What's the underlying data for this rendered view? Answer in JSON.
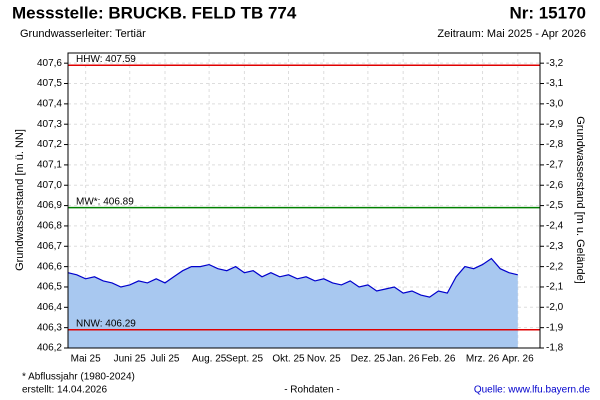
{
  "chart_data": {
    "type": "area",
    "title": "Messstelle: BRUCKB. FELD TB 774",
    "number": "Nr: 15170",
    "subtitle": "Grundwasserleiter: Tertiär",
    "period": "Zeitraum: Mai 2025 - Apr 2026",
    "ylabel": "Grundwasserstand [m ü. NN]",
    "y2label": "Grundwasserstand [m u. Gelände]",
    "footnote": "* Abflussjahr (1980-2024)",
    "created": "erstellt:  14.04.2026",
    "note": "- Rohdaten -",
    "source": "Quelle: www.lfu.bayern.de",
    "categories": [
      null,
      null,
      "Mai 25",
      null,
      null,
      null,
      null,
      "Juni 25",
      null,
      null,
      null,
      "Juli 25",
      null,
      null,
      null,
      null,
      "Aug. 25",
      null,
      null,
      null,
      "Sept. 25",
      null,
      null,
      null,
      null,
      "Okt. 25",
      null,
      null,
      null,
      "Nov. 25",
      null,
      null,
      null,
      null,
      "Dez. 25",
      null,
      null,
      null,
      "Jan. 26",
      null,
      null,
      null,
      "Feb. 26",
      null,
      null,
      null,
      null,
      "Mrz. 26",
      null,
      null,
      null,
      "Apr. 26"
    ],
    "values": [
      406.57,
      406.56,
      406.54,
      406.55,
      406.53,
      406.52,
      406.5,
      406.51,
      406.53,
      406.52,
      406.54,
      406.52,
      406.55,
      406.58,
      406.6,
      406.6,
      406.61,
      406.59,
      406.58,
      406.6,
      406.57,
      406.58,
      406.55,
      406.57,
      406.55,
      406.56,
      406.54,
      406.55,
      406.53,
      406.54,
      406.52,
      406.51,
      406.53,
      406.5,
      406.51,
      406.48,
      406.49,
      406.5,
      406.47,
      406.48,
      406.46,
      406.45,
      406.48,
      406.47,
      406.55,
      406.6,
      406.59,
      406.61,
      406.64,
      406.59,
      406.57,
      406.56
    ],
    "color": "#0000cc",
    "fill": "#a8c8f0",
    "ylim": [
      406.2,
      407.65
    ],
    "yticks": [
      {
        "value": 406.2,
        "label": "406,2"
      },
      {
        "value": 406.3,
        "label": "406,3"
      },
      {
        "value": 406.4,
        "label": "406,4"
      },
      {
        "value": 406.5,
        "label": "406,5"
      },
      {
        "value": 406.6,
        "label": "406,6"
      },
      {
        "value": 406.7,
        "label": "406,7"
      },
      {
        "value": 406.8,
        "label": "406,8"
      },
      {
        "value": 406.9,
        "label": "406,9"
      },
      {
        "value": 407.0,
        "label": "407,0"
      },
      {
        "value": 407.1,
        "label": "407,1"
      },
      {
        "value": 407.2,
        "label": "407,2"
      },
      {
        "value": 407.3,
        "label": "407,3"
      },
      {
        "value": 407.4,
        "label": "407,4"
      },
      {
        "value": 407.5,
        "label": "407,5"
      },
      {
        "value": 407.6,
        "label": "407,6"
      }
    ],
    "y2lim": [
      -1.8,
      -3.25
    ],
    "y2ticks": [
      {
        "value": -1.8,
        "label": "-1,8"
      },
      {
        "value": -1.9,
        "label": "-1,9"
      },
      {
        "value": -2.0,
        "label": "-2,0"
      },
      {
        "value": -2.1,
        "label": "-2,1"
      },
      {
        "value": -2.2,
        "label": "-2,2"
      },
      {
        "value": -2.3,
        "label": "-2,3"
      },
      {
        "value": -2.4,
        "label": "-2,4"
      },
      {
        "value": -2.5,
        "label": "-2,5"
      },
      {
        "value": -2.6,
        "label": "-2,6"
      },
      {
        "value": -2.7,
        "label": "-2,7"
      },
      {
        "value": -2.8,
        "label": "-2,8"
      },
      {
        "value": -2.9,
        "label": "-2,9"
      },
      {
        "value": -3.0,
        "label": "-3,0"
      },
      {
        "value": -3.1,
        "label": "-3,1"
      },
      {
        "value": -3.2,
        "label": "-3,2"
      }
    ],
    "ref_lines": [
      {
        "label": "HHW: 407.59",
        "value": 407.59,
        "color": "#e00000"
      },
      {
        "label": "MW*: 406.89",
        "value": 406.89,
        "color": "#008000"
      },
      {
        "label": "NNW: 406.29",
        "value": 406.29,
        "color": "#e00000"
      }
    ],
    "grid": true
  }
}
